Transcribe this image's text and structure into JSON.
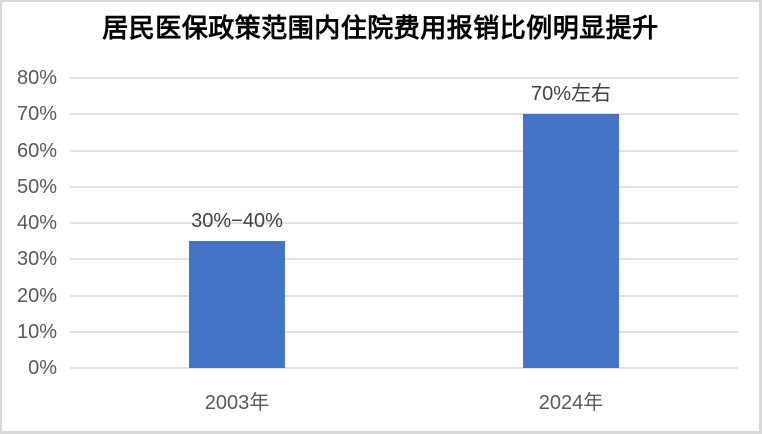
{
  "window": {
    "background": "#ffffff",
    "border_color": "#d9d9d9"
  },
  "chart_data": {
    "type": "bar",
    "title": "居民医保政策范围内住院费用报销比例明显提升",
    "categories": [
      "2003年",
      "2024年"
    ],
    "values": [
      35,
      70
    ],
    "data_labels": [
      "30%−40%",
      "70%左右"
    ],
    "xlabel": "",
    "ylabel": "",
    "ylim": [
      0,
      80
    ],
    "ytick_step": 10,
    "ytick_labels": [
      "0%",
      "10%",
      "20%",
      "30%",
      "40%",
      "50%",
      "60%",
      "70%",
      "80%"
    ],
    "grid": true,
    "legend": false,
    "bar_color": "#4472C4",
    "gridline_color": "#e2e2e2",
    "axis_label_color": "#595959",
    "data_label_color": "#404040",
    "title_color": "#000000"
  }
}
